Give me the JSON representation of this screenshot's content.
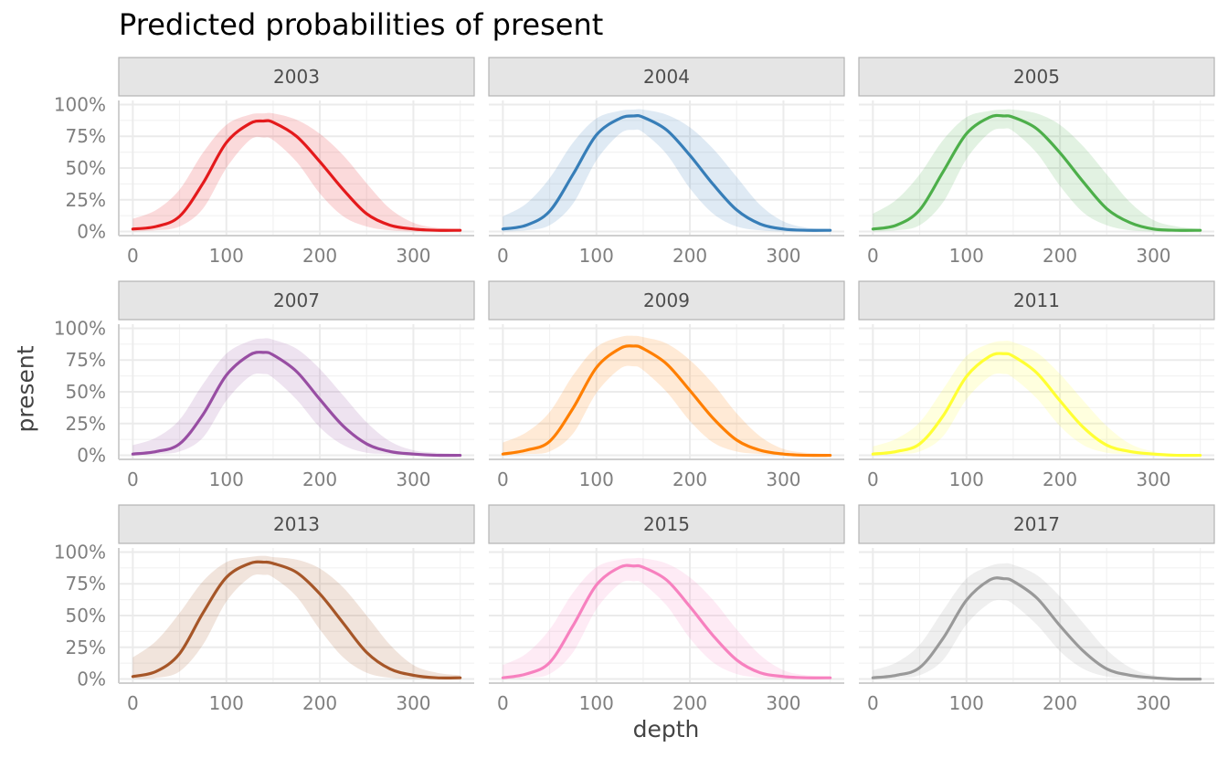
{
  "chart_data": {
    "type": "line",
    "title": "Predicted probabilities of present",
    "xlabel": "depth",
    "ylabel": "present",
    "xlim": [
      -15,
      365
    ],
    "ylim": [
      0,
      1.0
    ],
    "x_ticks": [
      0,
      100,
      200,
      300
    ],
    "x_tick_labels": [
      "0",
      "100",
      "200",
      "300"
    ],
    "y_ticks": [
      0,
      0.25,
      0.5,
      0.75,
      1.0
    ],
    "y_tick_labels": [
      "0%",
      "25%",
      "50%",
      "75%",
      "100%"
    ],
    "grid": true,
    "layout": {
      "rows": 3,
      "cols": 3
    },
    "x": [
      0,
      25,
      50,
      75,
      100,
      125,
      140,
      150,
      175,
      200,
      225,
      250,
      275,
      300,
      325,
      350
    ],
    "facets": [
      {
        "label": "2003",
        "color": "#E41A1C",
        "values": [
          0.02,
          0.04,
          0.12,
          0.38,
          0.7,
          0.85,
          0.87,
          0.86,
          0.75,
          0.55,
          0.33,
          0.14,
          0.05,
          0.02,
          0.01,
          0.01
        ],
        "lower": [
          0.0,
          0.01,
          0.04,
          0.18,
          0.5,
          0.72,
          0.74,
          0.72,
          0.55,
          0.3,
          0.12,
          0.04,
          0.01,
          0.0,
          0.0,
          0.0
        ],
        "upper": [
          0.1,
          0.17,
          0.33,
          0.62,
          0.84,
          0.92,
          0.93,
          0.93,
          0.88,
          0.77,
          0.6,
          0.38,
          0.18,
          0.07,
          0.03,
          0.02
        ]
      },
      {
        "label": "2004",
        "color": "#377EB8",
        "values": [
          0.02,
          0.05,
          0.16,
          0.45,
          0.76,
          0.89,
          0.91,
          0.9,
          0.8,
          0.6,
          0.37,
          0.17,
          0.06,
          0.02,
          0.01,
          0.01
        ],
        "lower": [
          0.0,
          0.01,
          0.05,
          0.22,
          0.56,
          0.77,
          0.8,
          0.78,
          0.61,
          0.34,
          0.14,
          0.04,
          0.01,
          0.0,
          0.0,
          0.0
        ],
        "upper": [
          0.12,
          0.22,
          0.42,
          0.7,
          0.89,
          0.95,
          0.96,
          0.96,
          0.92,
          0.82,
          0.65,
          0.43,
          0.21,
          0.08,
          0.03,
          0.02
        ]
      },
      {
        "label": "2005",
        "color": "#4DAF4A",
        "values": [
          0.02,
          0.05,
          0.17,
          0.47,
          0.77,
          0.9,
          0.91,
          0.9,
          0.81,
          0.62,
          0.39,
          0.18,
          0.07,
          0.02,
          0.01,
          0.01
        ],
        "lower": [
          0.0,
          0.01,
          0.05,
          0.23,
          0.57,
          0.78,
          0.81,
          0.79,
          0.62,
          0.36,
          0.15,
          0.05,
          0.01,
          0.0,
          0.0,
          0.0
        ],
        "upper": [
          0.14,
          0.25,
          0.45,
          0.72,
          0.9,
          0.95,
          0.96,
          0.96,
          0.93,
          0.84,
          0.67,
          0.45,
          0.23,
          0.09,
          0.04,
          0.02
        ]
      },
      {
        "label": "2007",
        "color": "#984EA3",
        "values": [
          0.01,
          0.03,
          0.09,
          0.32,
          0.63,
          0.79,
          0.81,
          0.79,
          0.66,
          0.44,
          0.23,
          0.09,
          0.03,
          0.01,
          0.0,
          0.0
        ],
        "lower": [
          0.0,
          0.01,
          0.03,
          0.14,
          0.43,
          0.62,
          0.64,
          0.61,
          0.44,
          0.22,
          0.08,
          0.02,
          0.01,
          0.0,
          0.0,
          0.0
        ],
        "upper": [
          0.08,
          0.14,
          0.28,
          0.56,
          0.8,
          0.9,
          0.92,
          0.91,
          0.84,
          0.68,
          0.47,
          0.26,
          0.11,
          0.04,
          0.02,
          0.01
        ]
      },
      {
        "label": "2009",
        "color": "#FF7F00",
        "values": [
          0.01,
          0.04,
          0.11,
          0.37,
          0.69,
          0.84,
          0.86,
          0.84,
          0.72,
          0.51,
          0.29,
          0.12,
          0.04,
          0.01,
          0.0,
          0.0
        ],
        "lower": [
          0.0,
          0.01,
          0.03,
          0.17,
          0.49,
          0.68,
          0.7,
          0.67,
          0.5,
          0.27,
          0.1,
          0.03,
          0.01,
          0.0,
          0.0,
          0.0
        ],
        "upper": [
          0.1,
          0.18,
          0.34,
          0.63,
          0.85,
          0.93,
          0.94,
          0.93,
          0.88,
          0.75,
          0.56,
          0.33,
          0.15,
          0.05,
          0.02,
          0.01
        ]
      },
      {
        "label": "2011",
        "color": "#FFFF33",
        "values": [
          0.01,
          0.03,
          0.09,
          0.31,
          0.62,
          0.78,
          0.8,
          0.78,
          0.65,
          0.43,
          0.22,
          0.08,
          0.03,
          0.01,
          0.0,
          0.0
        ],
        "lower": [
          0.0,
          0.01,
          0.03,
          0.15,
          0.44,
          0.62,
          0.64,
          0.61,
          0.45,
          0.23,
          0.08,
          0.02,
          0.01,
          0.0,
          0.0,
          0.0
        ],
        "upper": [
          0.07,
          0.13,
          0.26,
          0.52,
          0.78,
          0.88,
          0.9,
          0.89,
          0.81,
          0.64,
          0.43,
          0.23,
          0.09,
          0.03,
          0.01,
          0.01
        ]
      },
      {
        "label": "2013",
        "color": "#A65628",
        "values": [
          0.02,
          0.06,
          0.2,
          0.52,
          0.8,
          0.91,
          0.92,
          0.91,
          0.84,
          0.67,
          0.44,
          0.21,
          0.08,
          0.03,
          0.01,
          0.01
        ],
        "lower": [
          0.0,
          0.01,
          0.06,
          0.27,
          0.61,
          0.8,
          0.82,
          0.8,
          0.65,
          0.39,
          0.17,
          0.05,
          0.01,
          0.0,
          0.0,
          0.0
        ],
        "upper": [
          0.17,
          0.3,
          0.52,
          0.77,
          0.92,
          0.96,
          0.97,
          0.96,
          0.94,
          0.87,
          0.72,
          0.5,
          0.27,
          0.11,
          0.05,
          0.03
        ]
      },
      {
        "label": "2015",
        "color": "#F781BF",
        "values": [
          0.01,
          0.04,
          0.13,
          0.42,
          0.74,
          0.88,
          0.89,
          0.88,
          0.78,
          0.57,
          0.34,
          0.15,
          0.05,
          0.02,
          0.01,
          0.01
        ],
        "lower": [
          0.0,
          0.01,
          0.04,
          0.21,
          0.55,
          0.75,
          0.77,
          0.75,
          0.58,
          0.32,
          0.13,
          0.04,
          0.01,
          0.0,
          0.0,
          0.0
        ],
        "upper": [
          0.11,
          0.2,
          0.39,
          0.68,
          0.88,
          0.94,
          0.95,
          0.95,
          0.91,
          0.8,
          0.62,
          0.39,
          0.19,
          0.07,
          0.03,
          0.02
        ]
      },
      {
        "label": "2017",
        "color": "#999999",
        "values": [
          0.01,
          0.03,
          0.09,
          0.32,
          0.62,
          0.78,
          0.79,
          0.77,
          0.64,
          0.42,
          0.22,
          0.08,
          0.03,
          0.01,
          0.0,
          0.0
        ],
        "lower": [
          0.0,
          0.01,
          0.03,
          0.15,
          0.43,
          0.6,
          0.62,
          0.59,
          0.43,
          0.22,
          0.08,
          0.02,
          0.01,
          0.0,
          0.0,
          0.0
        ],
        "upper": [
          0.07,
          0.13,
          0.27,
          0.54,
          0.79,
          0.89,
          0.91,
          0.9,
          0.82,
          0.65,
          0.44,
          0.23,
          0.09,
          0.03,
          0.01,
          0.01
        ]
      }
    ]
  }
}
